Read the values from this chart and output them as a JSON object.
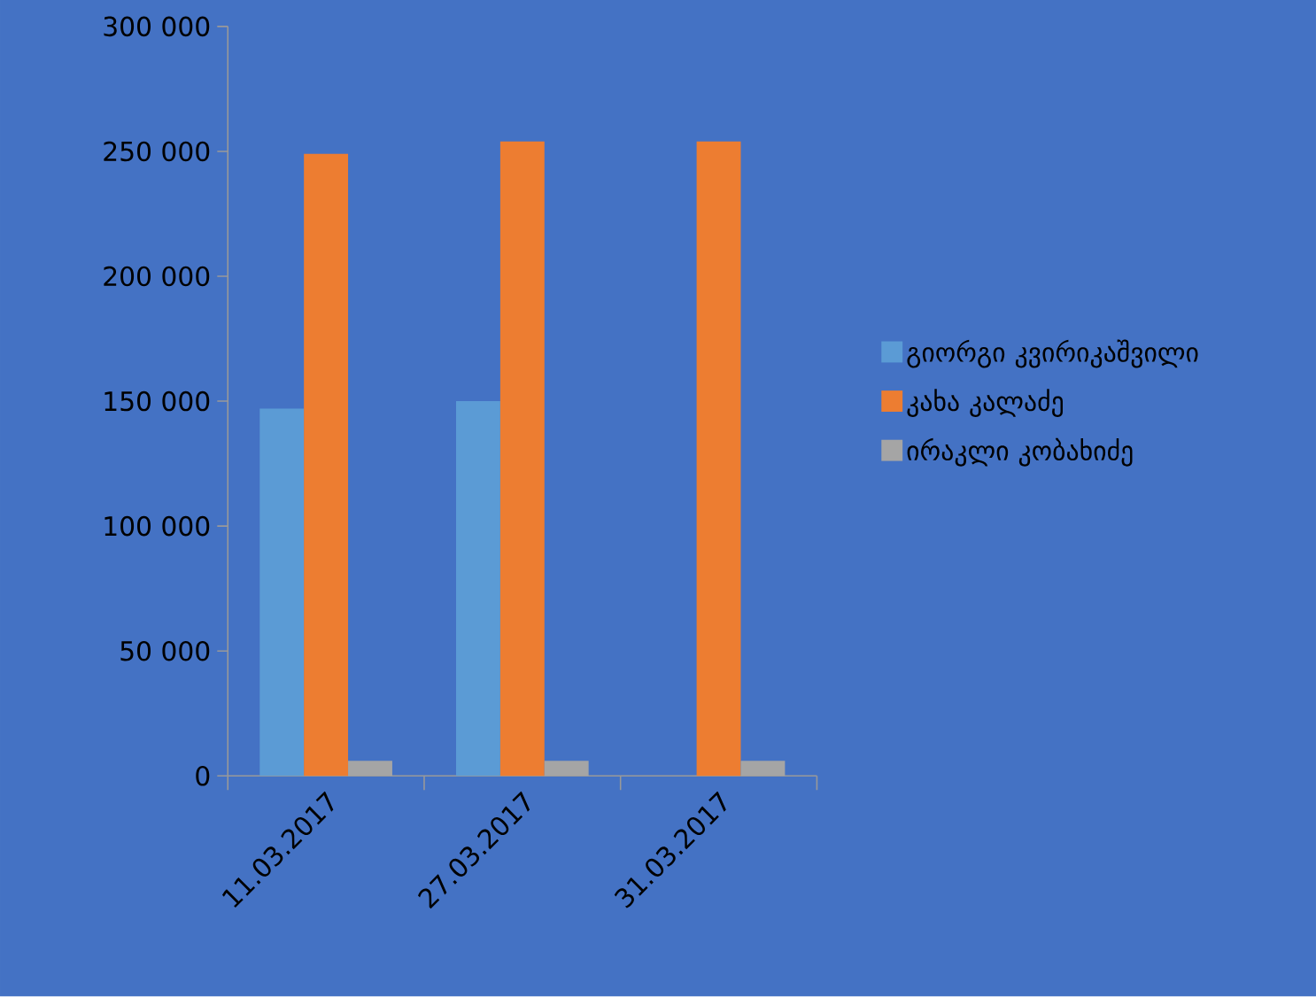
{
  "chart_data": {
    "type": "bar",
    "categories": [
      "11.03.2017",
      "27.03.2017",
      "31.03.2017"
    ],
    "series": [
      {
        "name": "გიორგი კვირიკაშვილი",
        "color": "#5b9bd5",
        "values": [
          147000,
          150000,
          null
        ]
      },
      {
        "name": "კახა კალაძე",
        "color": "#ed7d31",
        "values": [
          249000,
          254000,
          254000
        ]
      },
      {
        "name": "ირაკლი კობახიძე",
        "color": "#a5a5a5",
        "values": [
          6000,
          6000,
          6000
        ]
      }
    ],
    "ylim": [
      0,
      300000
    ],
    "yticks": [
      {
        "value": 0,
        "label": "0"
      },
      {
        "value": 50000,
        "label": "50 000"
      },
      {
        "value": 100000,
        "label": "100 000"
      },
      {
        "value": 150000,
        "label": "150 000"
      },
      {
        "value": 200000,
        "label": "200 000"
      },
      {
        "value": 250000,
        "label": "250 000"
      },
      {
        "value": 300000,
        "label": "300 000"
      }
    ],
    "grid": false,
    "legend": "right"
  }
}
